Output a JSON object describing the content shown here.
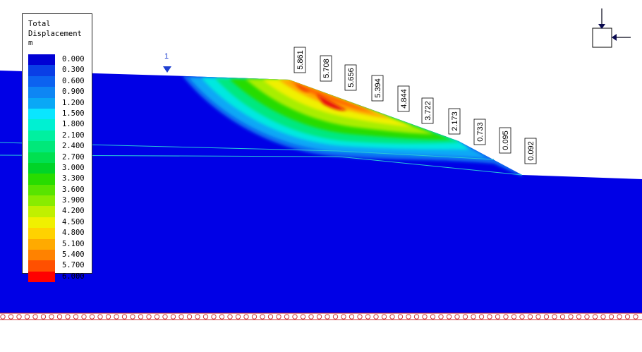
{
  "legend": {
    "title_line1": "Total",
    "title_line2": "Displacement",
    "title_line3": "m",
    "entries": [
      {
        "label": "0.000",
        "color": "#0000d4"
      },
      {
        "label": "0.300",
        "color": "#0a3ee6"
      },
      {
        "label": "0.600",
        "color": "#0c62f0"
      },
      {
        "label": "0.900",
        "color": "#0e86f4"
      },
      {
        "label": "1.200",
        "color": "#0aa8f6"
      },
      {
        "label": "1.500",
        "color": "#0ae6ff"
      },
      {
        "label": "1.800",
        "color": "#00f0d2"
      },
      {
        "label": "2.100",
        "color": "#00f0a0"
      },
      {
        "label": "2.400",
        "color": "#00e87a"
      },
      {
        "label": "2.700",
        "color": "#00e050"
      },
      {
        "label": "3.000",
        "color": "#00d428"
      },
      {
        "label": "3.300",
        "color": "#28dc00"
      },
      {
        "label": "3.600",
        "color": "#58e400"
      },
      {
        "label": "3.900",
        "color": "#88ec00"
      },
      {
        "label": "4.200",
        "color": "#c0f000"
      },
      {
        "label": "4.500",
        "color": "#f0f000"
      },
      {
        "label": "4.800",
        "color": "#ffd200"
      },
      {
        "label": "5.100",
        "color": "#ffaa00"
      },
      {
        "label": "5.400",
        "color": "#ff8200"
      },
      {
        "label": "5.700",
        "color": "#ff5000"
      },
      {
        "label": "6.000",
        "color": "#ff0000"
      }
    ]
  },
  "section_marker": "1",
  "surface_labels": [
    "5.861",
    "5.708",
    "5.656",
    "5.394",
    "4.844",
    "3.722",
    "2.173",
    "0.733",
    "0.095",
    "0.092"
  ],
  "colors": {
    "background": "#ffffff",
    "soil": "#0000e6",
    "water_line": "#28c8d8",
    "support": "#cc2222",
    "marker": "#1f3fd0"
  }
}
